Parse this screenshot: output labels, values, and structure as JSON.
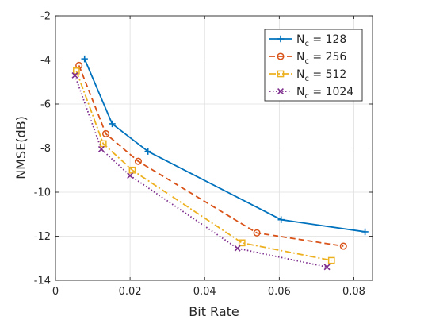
{
  "chart_data": {
    "type": "line",
    "title": "",
    "xlabel": "Bit Rate",
    "ylabel": "NMSE(dB)",
    "xlim": [
      0,
      0.085
    ],
    "ylim": [
      -14,
      -2
    ],
    "xticks": [
      0,
      0.02,
      0.04,
      0.06,
      0.08
    ],
    "xtick_labels": [
      "0",
      "0.02",
      "0.04",
      "0.06",
      "0.08"
    ],
    "yticks": [
      -14,
      -12,
      -10,
      -8,
      -6,
      -4,
      -2
    ],
    "ytick_labels": [
      "-14",
      "-12",
      "-10",
      "-8",
      "-6",
      "-4",
      "-2"
    ],
    "grid": true,
    "legend_position": "top-right",
    "series": [
      {
        "name": "N_c = 128",
        "base": "N",
        "sub": "c",
        "rest": " = 128",
        "color": "#0072BD",
        "dash": "solid",
        "marker": "plus",
        "x": [
          0.0078,
          0.0152,
          0.0248,
          0.0605,
          0.083
        ],
        "y": [
          -3.95,
          -6.9,
          -8.15,
          -11.25,
          -11.8
        ]
      },
      {
        "name": "N_c = 256",
        "base": "N",
        "sub": "c",
        "rest": " = 256",
        "color": "#D95319",
        "dash": "dashed",
        "marker": "circle",
        "x": [
          0.0063,
          0.0135,
          0.0222,
          0.054,
          0.0772
        ],
        "y": [
          -4.25,
          -7.35,
          -8.6,
          -11.85,
          -12.45
        ]
      },
      {
        "name": "N_c = 512",
        "base": "N",
        "sub": "c",
        "rest": " = 512",
        "color": "#EDB120",
        "dash": "dashdot",
        "marker": "square",
        "x": [
          0.0056,
          0.0128,
          0.0206,
          0.05,
          0.074
        ],
        "y": [
          -4.5,
          -7.8,
          -9.0,
          -12.3,
          -13.1
        ]
      },
      {
        "name": "N_c = 1024",
        "base": "N",
        "sub": "c",
        "rest": " = 1024",
        "color": "#7E2F8E",
        "dash": "dotted",
        "marker": "x",
        "x": [
          0.0052,
          0.0123,
          0.02,
          0.0488,
          0.0728
        ],
        "y": [
          -4.7,
          -8.05,
          -9.25,
          -12.55,
          -13.4
        ]
      }
    ]
  }
}
